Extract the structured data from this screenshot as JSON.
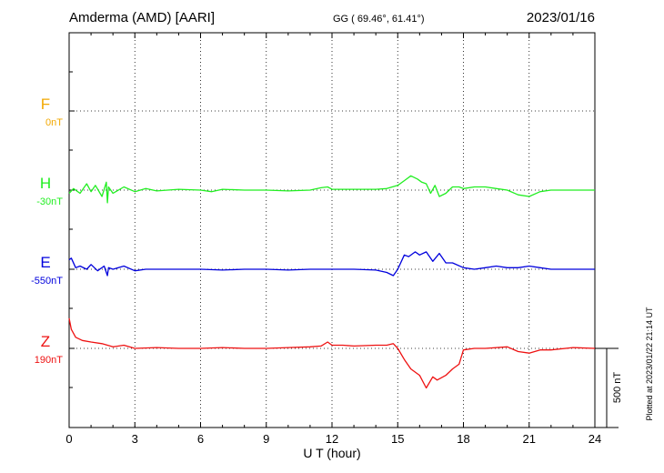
{
  "header": {
    "station": "Amderma (AMD)  [AARI]",
    "coords": "GG ( 69.46°,  61.41°)",
    "date": "2023/01/16"
  },
  "footer": {
    "plotted": "Plotted at 2023/01/22 21:14 UT"
  },
  "chart_data": {
    "type": "line",
    "title": "Amderma (AMD)  [AARI]",
    "xlabel": "U T (hour)",
    "xlim": [
      0,
      24
    ],
    "xticks": [
      "0",
      "3",
      "6",
      "9",
      "12",
      "15",
      "18",
      "21",
      "24"
    ],
    "scale_bar_label": "500 nT",
    "scale_bar_nT": 500,
    "grid": true,
    "series": [
      {
        "name": "F",
        "baseline_label": "0nT",
        "color": "#f2a800",
        "x": [],
        "y": []
      },
      {
        "name": "H",
        "baseline_label": "-30nT",
        "color": "#22ee22",
        "x": [
          0,
          0.2,
          0.5,
          0.8,
          1.0,
          1.2,
          1.5,
          1.7,
          1.75,
          1.8,
          2.0,
          2.5,
          3.0,
          3.5,
          4.0,
          5.0,
          6.0,
          6.5,
          7.0,
          8.0,
          9.0,
          10.0,
          11.0,
          11.5,
          11.8,
          12.0,
          12.5,
          13.0,
          14.0,
          14.5,
          15.0,
          15.3,
          15.6,
          15.9,
          16.1,
          16.3,
          16.5,
          16.7,
          16.9,
          17.2,
          17.5,
          17.8,
          18.0,
          18.5,
          19.0,
          19.5,
          20.0,
          20.5,
          21.0,
          21.5,
          22.0,
          23.0,
          24.0
        ],
        "y": [
          -20,
          10,
          -20,
          40,
          -10,
          30,
          -40,
          50,
          -80,
          20,
          -20,
          20,
          -10,
          10,
          -5,
          5,
          0,
          -10,
          5,
          0,
          0,
          -5,
          0,
          15,
          20,
          5,
          5,
          5,
          5,
          10,
          30,
          60,
          90,
          70,
          50,
          40,
          -20,
          30,
          -40,
          -20,
          20,
          20,
          10,
          20,
          20,
          10,
          0,
          -30,
          -40,
          -10,
          0,
          0,
          0
        ]
      },
      {
        "name": "E",
        "baseline_label": "-550nT",
        "color": "#0000dd",
        "x": [
          0,
          0.1,
          0.3,
          0.5,
          0.8,
          1.0,
          1.3,
          1.6,
          1.75,
          1.8,
          2.0,
          2.5,
          3.0,
          3.5,
          4.0,
          5.0,
          6.0,
          7.0,
          8.0,
          9.0,
          10.0,
          11.0,
          12.0,
          13.0,
          14.0,
          14.5,
          14.8,
          15.0,
          15.3,
          15.5,
          15.8,
          16.0,
          16.3,
          16.6,
          16.9,
          17.2,
          17.5,
          18.0,
          18.5,
          19.0,
          19.5,
          20.0,
          20.5,
          21.0,
          21.5,
          22.0,
          23.0,
          24.0
        ],
        "y": [
          60,
          70,
          10,
          20,
          0,
          30,
          -10,
          20,
          -40,
          10,
          0,
          20,
          -10,
          0,
          0,
          0,
          0,
          -5,
          0,
          0,
          -5,
          0,
          0,
          0,
          -5,
          -20,
          -40,
          0,
          90,
          80,
          110,
          90,
          110,
          50,
          100,
          40,
          40,
          10,
          0,
          10,
          20,
          10,
          10,
          20,
          10,
          0,
          0,
          0
        ]
      },
      {
        "name": "Z",
        "baseline_label": "190nT",
        "color": "#ee1111",
        "x": [
          0,
          0.1,
          0.3,
          0.6,
          1.0,
          1.5,
          2.0,
          2.5,
          3.0,
          4.0,
          5.0,
          6.0,
          7.0,
          8.0,
          9.0,
          10.0,
          11.0,
          11.5,
          11.8,
          12.0,
          12.5,
          13.0,
          14.0,
          14.5,
          14.8,
          15.0,
          15.3,
          15.6,
          16.0,
          16.3,
          16.6,
          16.8,
          17.2,
          17.5,
          17.8,
          18.0,
          18.5,
          19.0,
          20.0,
          20.5,
          21.0,
          21.5,
          22.0,
          23.0,
          24.0
        ],
        "y": [
          190,
          120,
          70,
          50,
          40,
          30,
          10,
          20,
          0,
          5,
          0,
          0,
          5,
          0,
          0,
          5,
          10,
          15,
          40,
          20,
          20,
          15,
          20,
          20,
          30,
          0,
          -70,
          -130,
          -170,
          -250,
          -180,
          -200,
          -170,
          -130,
          -100,
          -10,
          0,
          0,
          10,
          -20,
          -30,
          -10,
          -10,
          5,
          0
        ]
      }
    ]
  }
}
